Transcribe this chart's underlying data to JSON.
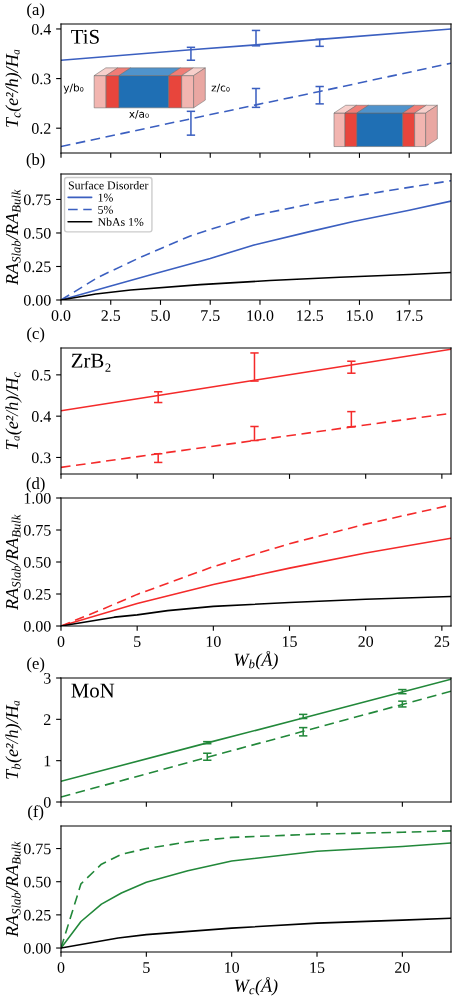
{
  "chart_data": [
    {
      "type": "line",
      "title": "(a)",
      "ylabel": "T$_{c}$(e²/h)/Hₐ",
      "annotations": [
        "TiS",
        "y/b₀",
        "x/a₀",
        "z/c₀"
      ],
      "xlim": [
        0,
        19.6
      ],
      "ylim": [
        0.15,
        0.41
      ],
      "xticks": [
        {
          "value": 0,
          "label": null
        },
        {
          "value": 2.5,
          "label": null
        },
        {
          "value": 5,
          "label": null
        },
        {
          "value": 7.5,
          "label": null
        },
        {
          "value": 10,
          "label": null
        },
        {
          "value": 12.5,
          "label": null
        },
        {
          "value": 15,
          "label": null
        },
        {
          "value": 17.5,
          "label": null
        }
      ],
      "yticks": [
        0.2,
        0.3,
        0.4
      ],
      "tick_labels": "y",
      "series": [
        {
          "type": "line",
          "x": [
            0,
            6.53,
            9.8,
            13.0,
            19.6
          ],
          "values": [
            0.337,
            0.358,
            0.368,
            0.379,
            0.4
          ],
          "errors": [
            null,
            [
              0.337,
              0.363
            ],
            [
              0.366,
              0.397
            ],
            [
              0.365,
              0.379
            ],
            null
          ],
          "color": "#3b5fc0",
          "line_style": "solid"
        },
        {
          "type": "line",
          "x": [
            0,
            6.53,
            9.8,
            13.0,
            19.6
          ],
          "values": [
            0.163,
            0.219,
            0.247,
            0.274,
            0.331
          ],
          "errors": [
            null,
            [
              0.186,
              0.234
            ],
            [
              0.242,
              0.28
            ],
            [
              0.249,
              0.284
            ],
            null
          ],
          "color": "#3b5fc0",
          "line_style": "dashed"
        }
      ]
    },
    {
      "type": "line",
      "title": "(b)",
      "ylabel": "RA$_{Slab}$/RA$_{Bulk}$",
      "legend_title": "Surface Disorder",
      "legend": "top left",
      "xlim": [
        0,
        19.6
      ],
      "ylim": [
        0,
        0.94
      ],
      "xticks": [
        {
          "value": 0,
          "label": "0.0"
        },
        2.5,
        {
          "value": 5,
          "label": "5.0"
        },
        7.5,
        {
          "value": 10,
          "label": "10.0"
        },
        12.5,
        {
          "value": 15,
          "label": "15.0"
        },
        17.5
      ],
      "yticks": [
        {
          "value": 0,
          "label": "0.00"
        },
        0.25,
        {
          "value": 0.5,
          "label": "0.50"
        },
        0.75
      ],
      "series": [
        {
          "type": "line",
          "name": "1%",
          "x": [
            0,
            2.5,
            4.7,
            7.5,
            9.7,
            12.5,
            14.7,
            17.5,
            19.6
          ],
          "values": [
            0,
            0.105,
            0.196,
            0.31,
            0.41,
            0.51,
            0.585,
            0.67,
            0.738
          ],
          "color": "#3b5fc0",
          "line_style": "solid"
        },
        {
          "type": "line",
          "name": "5%",
          "x": [
            0,
            1.87,
            3.87,
            6.53,
            9.7,
            13.0,
            16.4,
            19.6
          ],
          "values": [
            0,
            0.17,
            0.31,
            0.48,
            0.63,
            0.73,
            0.815,
            0.89
          ],
          "color": "#3b5fc0",
          "line_style": "dashed"
        },
        {
          "type": "line",
          "name": "NbAs 1%",
          "x": [
            0,
            1.75,
            3.5,
            7,
            10.5,
            14,
            17.5,
            19.6
          ],
          "values": [
            0,
            0.045,
            0.075,
            0.115,
            0.145,
            0.17,
            0.19,
            0.205
          ],
          "color": "#000000",
          "line_style": "solid"
        }
      ]
    },
    {
      "type": "line",
      "title": "(c)",
      "ylabel": "Tₐ(e²/h)/H$_{c}$",
      "annotations": [
        "ZrB₂"
      ],
      "xlim": [
        0,
        25.6
      ],
      "ylim": [
        0.26,
        0.565
      ],
      "xticks": [
        {
          "value": 0,
          "label": null
        },
        {
          "value": 5,
          "label": null
        },
        {
          "value": 10,
          "label": null
        },
        {
          "value": 15,
          "label": null
        },
        {
          "value": 20,
          "label": null
        },
        {
          "value": 25,
          "label": null
        }
      ],
      "yticks": [
        0.3,
        0.4,
        0.5
      ],
      "tick_labels": "y",
      "series": [
        {
          "type": "line",
          "x": [
            0,
            6.38,
            12.7,
            19.06,
            25.6
          ],
          "values": [
            0.413,
            0.45,
            0.487,
            0.524,
            0.562
          ],
          "errors": [
            null,
            [
              0.433,
              0.459
            ],
            [
              0.485,
              0.553
            ],
            [
              0.504,
              0.533
            ],
            null
          ],
          "color": "#f42a2a",
          "line_style": "solid"
        },
        {
          "type": "line",
          "x": [
            0,
            6.38,
            12.7,
            19.06,
            25.6
          ],
          "values": [
            0.276,
            0.309,
            0.341,
            0.374,
            0.407
          ],
          "errors": [
            null,
            [
              0.288,
              0.309
            ],
            [
              0.341,
              0.375
            ],
            [
              0.374,
              0.411
            ],
            null
          ],
          "color": "#f42a2a",
          "line_style": "dashed"
        }
      ]
    },
    {
      "type": "line",
      "title": "(d)",
      "ylabel": "RA$_{Slab}$/RA$_{Bulk}$",
      "xlabel": "W$_{b}$(Å)",
      "xlim": [
        0,
        25.6
      ],
      "ylim": [
        0,
        1.0
      ],
      "xticks": [
        0,
        5,
        10,
        15,
        20,
        25
      ],
      "yticks": [
        {
          "value": 0,
          "label": "0.00"
        },
        0.25,
        {
          "value": 0.5,
          "label": "0.50"
        },
        0.75,
        {
          "value": 1,
          "label": "1.00"
        }
      ],
      "series": [
        {
          "type": "line",
          "x": [
            0,
            5,
            10,
            15,
            20,
            25.6
          ],
          "values": [
            0,
            0.176,
            0.324,
            0.452,
            0.571,
            0.686
          ],
          "color": "#f42a2a",
          "line_style": "solid"
        },
        {
          "type": "line",
          "x": [
            0,
            2.5,
            5,
            10,
            15,
            20,
            25.6
          ],
          "values": [
            0,
            0.12,
            0.247,
            0.464,
            0.643,
            0.796,
            0.945
          ],
          "color": "#f42a2a",
          "line_style": "dashed"
        },
        {
          "type": "line",
          "x": [
            0,
            3.5,
            5,
            7,
            10,
            15,
            20,
            25.6
          ],
          "values": [
            0,
            0.069,
            0.087,
            0.12,
            0.153,
            0.184,
            0.209,
            0.23
          ],
          "color": "#000000",
          "line_style": "solid"
        }
      ]
    },
    {
      "type": "line",
      "title": "(e)",
      "ylabel": "T$_{b}$(e²/h)/Hₐ",
      "annotations": [
        "MoN"
      ],
      "xlim": [
        0,
        22.85
      ],
      "ylim": [
        0,
        3
      ],
      "xticks": [
        {
          "value": 0,
          "label": null
        },
        {
          "value": 5,
          "label": null
        },
        {
          "value": 10,
          "label": null
        },
        {
          "value": 15,
          "label": null
        },
        {
          "value": 20,
          "label": null
        }
      ],
      "yticks": [
        0,
        1,
        2,
        3
      ],
      "tick_labels": "y",
      "series": [
        {
          "type": "line",
          "x": [
            0,
            8.57,
            14.19,
            20.0,
            22.85
          ],
          "values": [
            0.5,
            1.43,
            2.03,
            2.66,
            2.97
          ],
          "errors": [
            null,
            [
              1.41,
              1.46
            ],
            [
              2.02,
              2.12
            ],
            [
              2.62,
              2.72
            ],
            null
          ],
          "color": "#22883a",
          "line_style": "solid"
        },
        {
          "type": "line",
          "x": [
            0,
            8.57,
            14.19,
            20.0,
            22.85
          ],
          "values": [
            0.12,
            1.08,
            1.71,
            2.36,
            2.68
          ],
          "errors": [
            null,
            [
              1.01,
              1.18
            ],
            [
              1.6,
              1.8
            ],
            [
              2.3,
              2.44
            ],
            null
          ],
          "color": "#22883a",
          "line_style": "dashed"
        }
      ]
    },
    {
      "type": "line",
      "title": "(f)",
      "ylabel": "RA$_{Slab}$/RA$_{Bulk}$",
      "xlabel": "W$_{c}$(Å)",
      "xlim": [
        0,
        22.85
      ],
      "ylim": [
        -0.03,
        0.92
      ],
      "xticks": [
        0,
        5,
        10,
        15,
        20
      ],
      "yticks": [
        {
          "value": 0,
          "label": "0.00"
        },
        0.25,
        {
          "value": 0.5,
          "label": "0.50"
        },
        0.75
      ],
      "series": [
        {
          "type": "line",
          "x": [
            0,
            1.17,
            2.37,
            3.54,
            5,
            7.43,
            10,
            15,
            20,
            22.85
          ],
          "values": [
            0,
            0.2,
            0.331,
            0.415,
            0.496,
            0.582,
            0.656,
            0.73,
            0.765,
            0.792
          ],
          "color": "#22883a",
          "line_style": "solid"
        },
        {
          "type": "line",
          "x": [
            0,
            1.17,
            2.37,
            3.54,
            5,
            7.43,
            10,
            15,
            20,
            22.85
          ],
          "values": [
            0,
            0.484,
            0.632,
            0.706,
            0.75,
            0.8,
            0.834,
            0.859,
            0.873,
            0.883
          ],
          "color": "#22883a",
          "line_style": "dashed"
        },
        {
          "type": "line",
          "x": [
            0,
            3.35,
            5,
            10,
            15,
            20,
            22.85
          ],
          "values": [
            0,
            0.076,
            0.101,
            0.15,
            0.188,
            0.21,
            0.225
          ],
          "color": "#000000",
          "line_style": "solid"
        }
      ]
    }
  ]
}
